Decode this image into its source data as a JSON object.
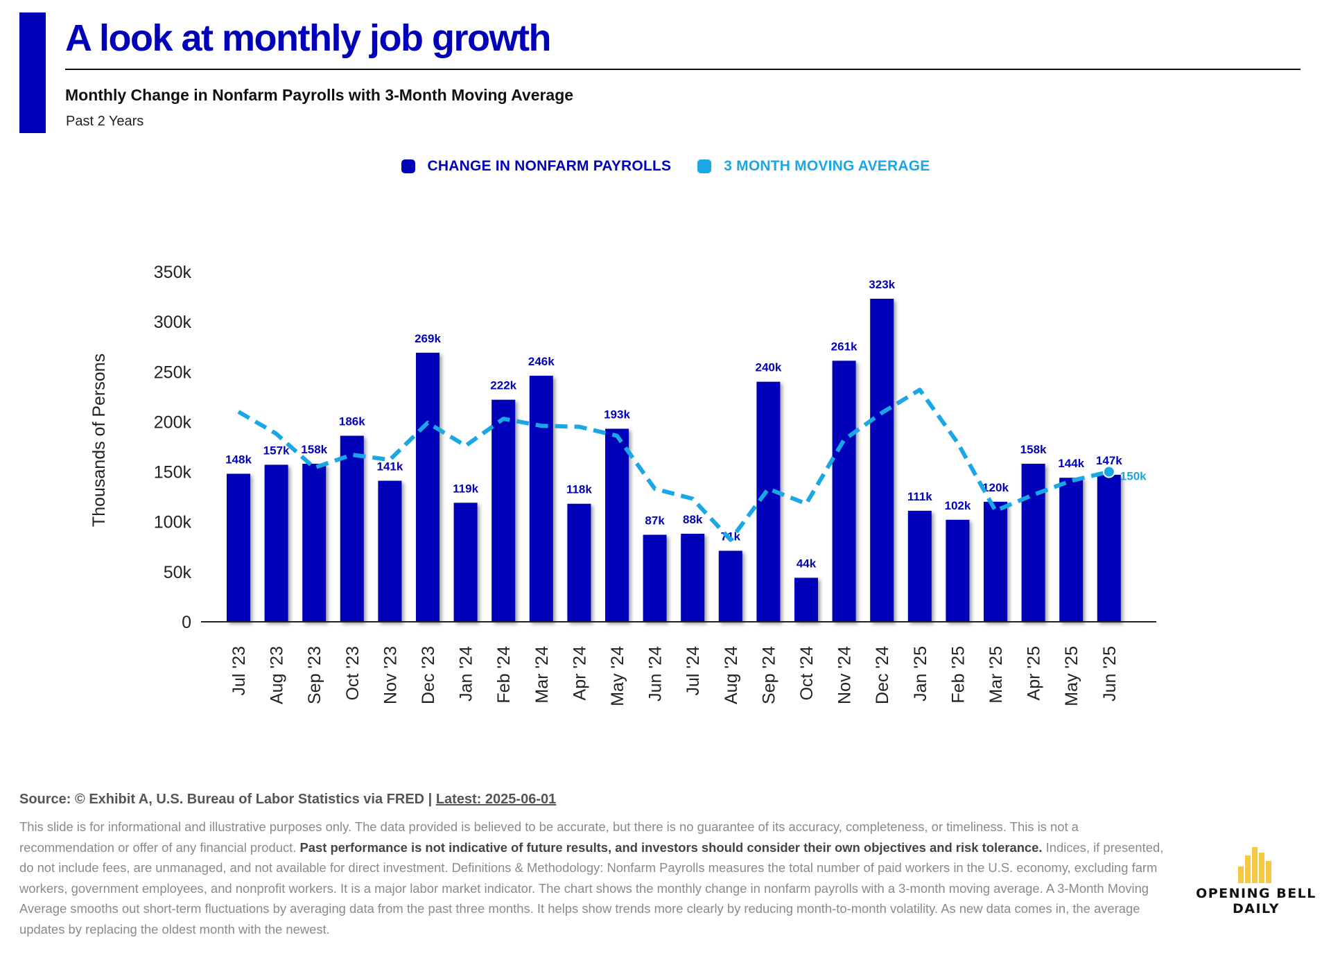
{
  "header": {
    "title": "A look at monthly job growth",
    "subtitle": "Monthly Change in Nonfarm Payrolls with 3-Month Moving Average",
    "period": "Past 2 Years"
  },
  "colors": {
    "brand": "#0000b8",
    "bars": "#0000b8",
    "moving_average": "#1aa7e6",
    "logo": "#f5c842"
  },
  "legend": [
    {
      "label": "CHANGE IN NONFARM PAYROLLS",
      "color": "#0000b8"
    },
    {
      "label": "3 MONTH MOVING AVERAGE",
      "color": "#1aa7e6"
    }
  ],
  "chart_data": {
    "type": "bar",
    "ylabel": "Thousands of Persons",
    "ylim": [
      0,
      350
    ],
    "yticks": [
      0,
      50,
      100,
      150,
      200,
      250,
      300,
      350
    ],
    "ytick_labels": [
      "0",
      "50k",
      "100k",
      "150k",
      "200k",
      "250k",
      "300k",
      "350k"
    ],
    "categories": [
      "Jul '23",
      "Aug '23",
      "Sep '23",
      "Oct '23",
      "Nov '23",
      "Dec '23",
      "Jan '24",
      "Feb '24",
      "Mar '24",
      "Apr '24",
      "May '24",
      "Jun '24",
      "Jul '24",
      "Aug '24",
      "Sep '24",
      "Oct '24",
      "Nov '24",
      "Dec '24",
      "Jan '25",
      "Feb '25",
      "Mar '25",
      "Apr '25",
      "May '25",
      "Jun '25"
    ],
    "grid": false,
    "legend_position": "top-center",
    "series": [
      {
        "name": "CHANGE IN NONFARM PAYROLLS",
        "type": "bar",
        "values": [
          148,
          157,
          158,
          186,
          141,
          269,
          119,
          222,
          246,
          118,
          193,
          87,
          88,
          71,
          240,
          44,
          261,
          323,
          111,
          102,
          120,
          158,
          144,
          147
        ],
        "labels": [
          "148k",
          "157k",
          "158k",
          "186k",
          "141k",
          "269k",
          "119k",
          "222k",
          "246k",
          "118k",
          "193k",
          "87k",
          "88k",
          "71k",
          "240k",
          "44k",
          "261k",
          "323k",
          "111k",
          "102k",
          "120k",
          "158k",
          "144k",
          "147k"
        ]
      },
      {
        "name": "3 MONTH MOVING AVERAGE",
        "type": "line",
        "style": "dashed",
        "values": [
          210,
          188,
          154,
          167,
          162,
          199,
          176,
          203,
          196,
          195,
          186,
          133,
          123,
          82,
          133,
          118,
          182,
          209,
          232,
          179,
          111,
          127,
          141,
          150
        ],
        "end_label": "150k"
      }
    ]
  },
  "footer": {
    "source_prefix": "Source: © Exhibit A, U.S. Bureau of Labor Statistics via FRED | ",
    "source_latest": "Latest: 2025-06-01",
    "disclaimer_part1": "This slide is for informational and illustrative purposes only. The data provided is believed to be accurate, but there is no guarantee of its accuracy, completeness, or timeliness. This is not a recommendation or offer of any financial product. ",
    "disclaimer_bold": "Past performance is not indicative of future results, and investors should consider their own objectives and risk tolerance.",
    "disclaimer_part2": " Indices, if presented, do not include fees, are unmanaged, and not available for direct investment. Definitions & Methodology: Nonfarm Payrolls measures the total number of paid workers in the U.S. economy, excluding farm workers, government employees, and nonprofit workers. It is a major labor market indicator. The chart shows the monthly change in nonfarm payrolls with a 3-month moving average. A 3-Month Moving Average smooths out short-term fluctuations by averaging data from the past three months. It helps show trends more clearly by reducing month-to-month volatility. As new data comes in, the average updates by replacing the oldest month with the newest."
  },
  "logo": {
    "line1": "OPENING BELL",
    "line2": "DAILY"
  }
}
